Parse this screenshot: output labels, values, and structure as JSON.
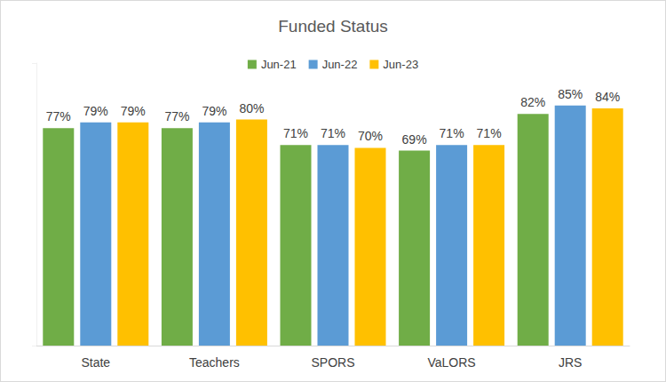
{
  "chart_data": {
    "type": "bar",
    "title": "Funded Status",
    "categories": [
      "State",
      "Teachers",
      "SPORS",
      "VaLORS",
      "JRS"
    ],
    "series": [
      {
        "name": "Jun-21",
        "color": "#70ad47",
        "values": [
          77,
          77,
          71,
          69,
          82
        ],
        "value_labels": [
          "77%",
          "77%",
          "71%",
          "69%",
          "82%"
        ]
      },
      {
        "name": "Jun-22",
        "color": "#5b9bd5",
        "values": [
          79,
          79,
          71,
          71,
          85
        ],
        "value_labels": [
          "79%",
          "79%",
          "71%",
          "71%",
          "85%"
        ]
      },
      {
        "name": "Jun-23",
        "color": "#ffc000",
        "values": [
          79,
          80,
          70,
          71,
          84
        ],
        "value_labels": [
          "79%",
          "80%",
          "70%",
          "71%",
          "84%"
        ]
      }
    ],
    "ylim": [
      0,
      100
    ],
    "yticks": [
      0,
      100
    ],
    "grid": false,
    "legend": "top",
    "data_labels": true,
    "tick_labels": "x"
  }
}
